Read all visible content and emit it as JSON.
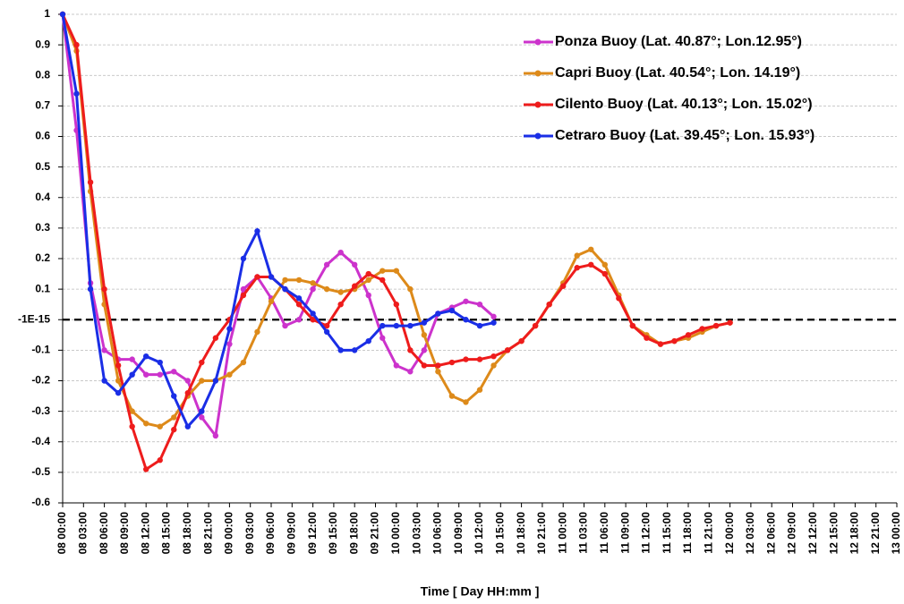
{
  "chart_data": {
    "type": "line",
    "x_label": "Time [ Day  HH:mm ]",
    "x": [
      0,
      2,
      4,
      6,
      8,
      10,
      12,
      14,
      16,
      18,
      20,
      22,
      24,
      26,
      28,
      30,
      32,
      34,
      36,
      38,
      40,
      42,
      44,
      46,
      48,
      50,
      52,
      54,
      56,
      58,
      60,
      62,
      64,
      66,
      68,
      70,
      72,
      74,
      76,
      78,
      80,
      82,
      84,
      86,
      88,
      90,
      92,
      94,
      96
    ],
    "series": [
      {
        "name": "Ponza Buoy (Lat. 40.87°; Lon.12.95°)",
        "color": "#cc33cc",
        "values": [
          1.0,
          0.62,
          0.12,
          -0.1,
          -0.13,
          -0.13,
          -0.18,
          -0.18,
          -0.17,
          -0.2,
          -0.32,
          -0.38,
          -0.08,
          0.1,
          0.14,
          0.07,
          -0.02,
          0.0,
          0.1,
          0.18,
          0.22,
          0.18,
          0.08,
          -0.06,
          -0.15,
          -0.17,
          -0.1,
          0.02,
          0.04,
          0.06,
          0.05,
          0.01,
          null,
          null,
          null,
          null,
          null,
          null,
          null,
          null,
          null,
          null,
          null,
          null,
          null,
          null,
          null,
          null,
          null
        ]
      },
      {
        "name": "Capri Buoy (Lat. 40.54°; Lon. 14.19°)",
        "color": "#dd8a1a",
        "values": [
          1.0,
          0.88,
          0.42,
          0.05,
          -0.2,
          -0.3,
          -0.34,
          -0.35,
          -0.32,
          -0.25,
          -0.2,
          -0.2,
          -0.18,
          -0.14,
          -0.04,
          0.06,
          0.13,
          0.13,
          0.12,
          0.1,
          0.09,
          0.1,
          0.13,
          0.16,
          0.16,
          0.1,
          -0.05,
          -0.17,
          -0.25,
          -0.27,
          -0.23,
          -0.15,
          -0.1,
          -0.07,
          -0.02,
          0.05,
          0.12,
          0.21,
          0.23,
          0.18,
          0.08,
          -0.02,
          -0.05,
          -0.08,
          -0.07,
          -0.06,
          -0.04,
          -0.02,
          -0.01
        ]
      },
      {
        "name": "Cilento Buoy (Lat. 40.13°; Lon. 15.02°)",
        "color": "#ee1c1c",
        "values": [
          1.0,
          0.9,
          0.45,
          0.1,
          -0.15,
          -0.35,
          -0.49,
          -0.46,
          -0.36,
          -0.24,
          -0.14,
          -0.06,
          0.0,
          0.08,
          0.14,
          0.14,
          0.1,
          0.05,
          0.0,
          -0.02,
          0.05,
          0.11,
          0.15,
          0.13,
          0.05,
          -0.1,
          -0.15,
          -0.15,
          -0.14,
          -0.13,
          -0.13,
          -0.12,
          -0.1,
          -0.07,
          -0.02,
          0.05,
          0.11,
          0.17,
          0.18,
          0.15,
          0.07,
          -0.02,
          -0.06,
          -0.08,
          -0.07,
          -0.05,
          -0.03,
          -0.02,
          -0.01
        ]
      },
      {
        "name": "Cetraro Buoy (Lat. 39.45°; Lon. 15.93°)",
        "color": "#1a2ee6",
        "values": [
          1.0,
          0.74,
          0.1,
          -0.2,
          -0.24,
          -0.18,
          -0.12,
          -0.14,
          -0.25,
          -0.35,
          -0.3,
          -0.2,
          -0.03,
          0.2,
          0.29,
          0.14,
          0.1,
          0.07,
          0.02,
          -0.04,
          -0.1,
          -0.1,
          -0.07,
          -0.02,
          -0.02,
          -0.02,
          -0.01,
          0.02,
          0.03,
          0.0,
          -0.02,
          -0.01,
          null,
          null,
          null,
          null,
          null,
          null,
          null,
          null,
          null,
          null,
          null,
          null,
          null,
          null,
          null,
          null,
          null
        ]
      }
    ],
    "xlim": [
      0,
      120
    ],
    "xticks": [
      {
        "value": 0,
        "label": "08 00:00"
      },
      {
        "value": 3,
        "label": "08 03:00"
      },
      {
        "value": 6,
        "label": "08 06:00"
      },
      {
        "value": 9,
        "label": "08 09:00"
      },
      {
        "value": 12,
        "label": "08 12:00"
      },
      {
        "value": 15,
        "label": "08 15:00"
      },
      {
        "value": 18,
        "label": "08 18:00"
      },
      {
        "value": 21,
        "label": "08 21:00"
      },
      {
        "value": 24,
        "label": "09 00:00"
      },
      {
        "value": 27,
        "label": "09 03:00"
      },
      {
        "value": 30,
        "label": "09 06:00"
      },
      {
        "value": 33,
        "label": "09 09:00"
      },
      {
        "value": 36,
        "label": "09 12:00"
      },
      {
        "value": 39,
        "label": "09 15:00"
      },
      {
        "value": 42,
        "label": "09 18:00"
      },
      {
        "value": 45,
        "label": "09 21:00"
      },
      {
        "value": 48,
        "label": "10 00:00"
      },
      {
        "value": 51,
        "label": "10 03:00"
      },
      {
        "value": 54,
        "label": "10 06:00"
      },
      {
        "value": 57,
        "label": "10 09:00"
      },
      {
        "value": 60,
        "label": "10 12:00"
      },
      {
        "value": 63,
        "label": "10 15:00"
      },
      {
        "value": 66,
        "label": "10 18:00"
      },
      {
        "value": 69,
        "label": "10 21:00"
      },
      {
        "value": 72,
        "label": "11 00:00"
      },
      {
        "value": 75,
        "label": "11 03:00"
      },
      {
        "value": 78,
        "label": "11 06:00"
      },
      {
        "value": 81,
        "label": "11 09:00"
      },
      {
        "value": 84,
        "label": "11 12:00"
      },
      {
        "value": 87,
        "label": "11 15:00"
      },
      {
        "value": 90,
        "label": "11 18:00"
      },
      {
        "value": 93,
        "label": "11 21:00"
      },
      {
        "value": 96,
        "label": "12 00:00"
      },
      {
        "value": 99,
        "label": "12 03:00"
      },
      {
        "value": 102,
        "label": "12 06:00"
      },
      {
        "value": 105,
        "label": "12 09:00"
      },
      {
        "value": 108,
        "label": "12 12:00"
      },
      {
        "value": 111,
        "label": "12 15:00"
      },
      {
        "value": 114,
        "label": "12 18:00"
      },
      {
        "value": 117,
        "label": "12 21:00"
      },
      {
        "value": 120,
        "label": "13 00:00"
      }
    ],
    "ylim": [
      -0.6,
      1
    ],
    "yticks": [
      -0.6,
      -0.5,
      -0.4,
      -0.3,
      -0.2,
      -0.1,
      {
        "value": -1e-15,
        "label": "-1E-15"
      },
      0.1,
      0.2,
      0.3,
      0.4,
      0.5,
      0.6,
      0.7,
      0.8,
      0.9,
      1
    ],
    "hline": -1e-15,
    "grid": true,
    "legend": "upper right"
  }
}
